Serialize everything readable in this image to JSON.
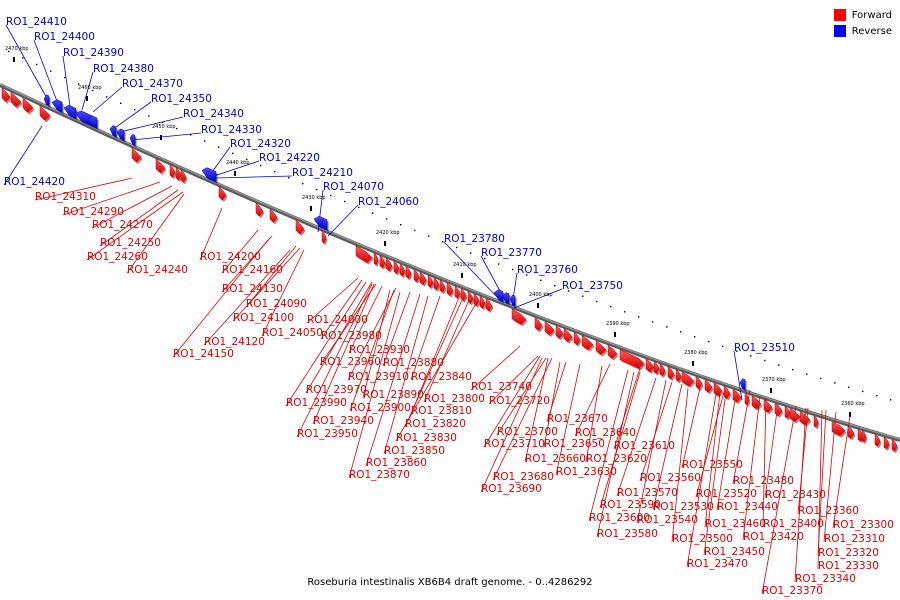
{
  "legend": {
    "forward": {
      "label": "Forward",
      "color": "#ff0000"
    },
    "reverse": {
      "label": "Reverse",
      "color": "#0000ff"
    }
  },
  "caption": "Roseburia intestinalis XB6B4 draft genome. - 0..4286292",
  "ticks": [
    "2470 kbp",
    "2460 kbp",
    "2450 kbp",
    "2440 kbp",
    "2430 kbp",
    "2420 kbp",
    "2410 kbp",
    "2400 kbp",
    "2390 kbp",
    "2380 kbp",
    "2370 kbp",
    "2360 kbp"
  ],
  "reverse_genes": [
    "RO1_24410",
    "RO1_24400",
    "RO1_24390",
    "RO1_24380",
    "RO1_24370",
    "RO1_24350",
    "RO1_24340",
    "RO1_24330",
    "RO1_24320",
    "RO1_24220",
    "RO1_24210",
    "RO1_24070",
    "RO1_24060",
    "RO1_23780",
    "RO1_23770",
    "RO1_23760",
    "RO1_23750",
    "RO1_23510",
    "RO1_24420"
  ],
  "forward_genes": [
    "RO1_24310",
    "RO1_24290",
    "RO1_24270",
    "RO1_24250",
    "RO1_24260",
    "RO1_24240",
    "RO1_24200",
    "RO1_24160",
    "RO1_24130",
    "RO1_24090",
    "RO1_24100",
    "RO1_24050",
    "RO1_24120",
    "RO1_24150",
    "RO1_24000",
    "RO1_23980",
    "RO1_23930",
    "RO1_23960",
    "RO1_23880",
    "RO1_23910",
    "RO1_23840",
    "RO1_23970",
    "RO1_23890",
    "RO1_23800",
    "RO1_23990",
    "RO1_23900",
    "RO1_23810",
    "RO1_23940",
    "RO1_23820",
    "RO1_23950",
    "RO1_23830",
    "RO1_23850",
    "RO1_23860",
    "RO1_23870",
    "RO1_23740",
    "RO1_23720",
    "RO1_23670",
    "RO1_23700",
    "RO1_23640",
    "RO1_23710",
    "RO1_23650",
    "RO1_23610",
    "RO1_23660",
    "RO1_23620",
    "RO1_23630",
    "RO1_23680",
    "RO1_23690",
    "RO1_23550",
    "RO1_23560",
    "RO1_23480",
    "RO1_23570",
    "RO1_23520",
    "RO1_23430",
    "RO1_23590",
    "RO1_23530",
    "RO1_23440",
    "RO1_23540",
    "RO1_23460",
    "RO1_23400",
    "RO1_23600",
    "RO1_23360",
    "RO1_23420",
    "RO1_23580",
    "RO1_23500",
    "RO1_23300",
    "RO1_23450",
    "RO1_23310",
    "RO1_23320",
    "RO1_23470",
    "RO1_23330",
    "RO1_23340",
    "RO1_23370"
  ]
}
